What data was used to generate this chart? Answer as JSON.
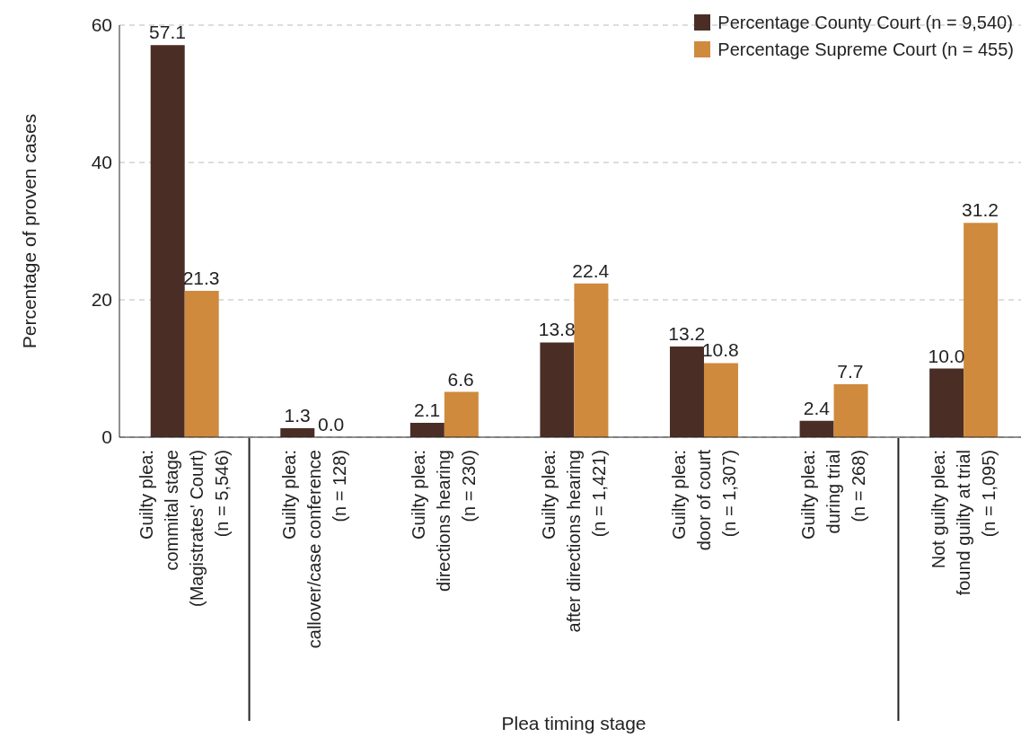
{
  "chart_data": {
    "type": "bar",
    "xlabel": "Plea timing stage",
    "ylabel": "Percentage of proven cases",
    "categories": [
      "Guilty plea:\ncommital stage\n(Magistrates' Court)\n(n = 5,546)",
      "Guilty plea:\ncallover/case conference\n(n = 128)",
      "Guilty plea:\ndirections hearing\n(n = 230)",
      "Guilty plea:\nafter directions hearing\n(n = 1,421)",
      "Guilty plea:\ndoor of court\n(n = 1,307)",
      "Guilty plea:\nduring trial\n(n = 268)",
      "Not guilty plea:\nfound guilty at trial\n(n = 1,095)"
    ],
    "series": [
      {
        "name": "Percentage County Court (n = 9,540)",
        "color": "#4a2e26",
        "values": [
          57.1,
          1.3,
          2.1,
          13.8,
          13.2,
          2.4,
          10.0
        ],
        "value_labels": [
          "57.1",
          "1.3",
          "2.1",
          "13.8",
          "13.2",
          "2.4",
          "10.0"
        ]
      },
      {
        "name": "Percentage Supreme Court (n = 455)",
        "color": "#cf8a3e",
        "values": [
          21.3,
          0.0,
          6.6,
          22.4,
          10.8,
          7.7,
          31.2
        ],
        "value_labels": [
          "21.3",
          "0.0",
          "6.6",
          "22.4",
          "10.8",
          "7.7",
          "31.2"
        ]
      }
    ],
    "ylim": [
      0,
      60
    ],
    "yticks": [
      0,
      20,
      40,
      60
    ],
    "grid": "y",
    "legend": "top right"
  }
}
